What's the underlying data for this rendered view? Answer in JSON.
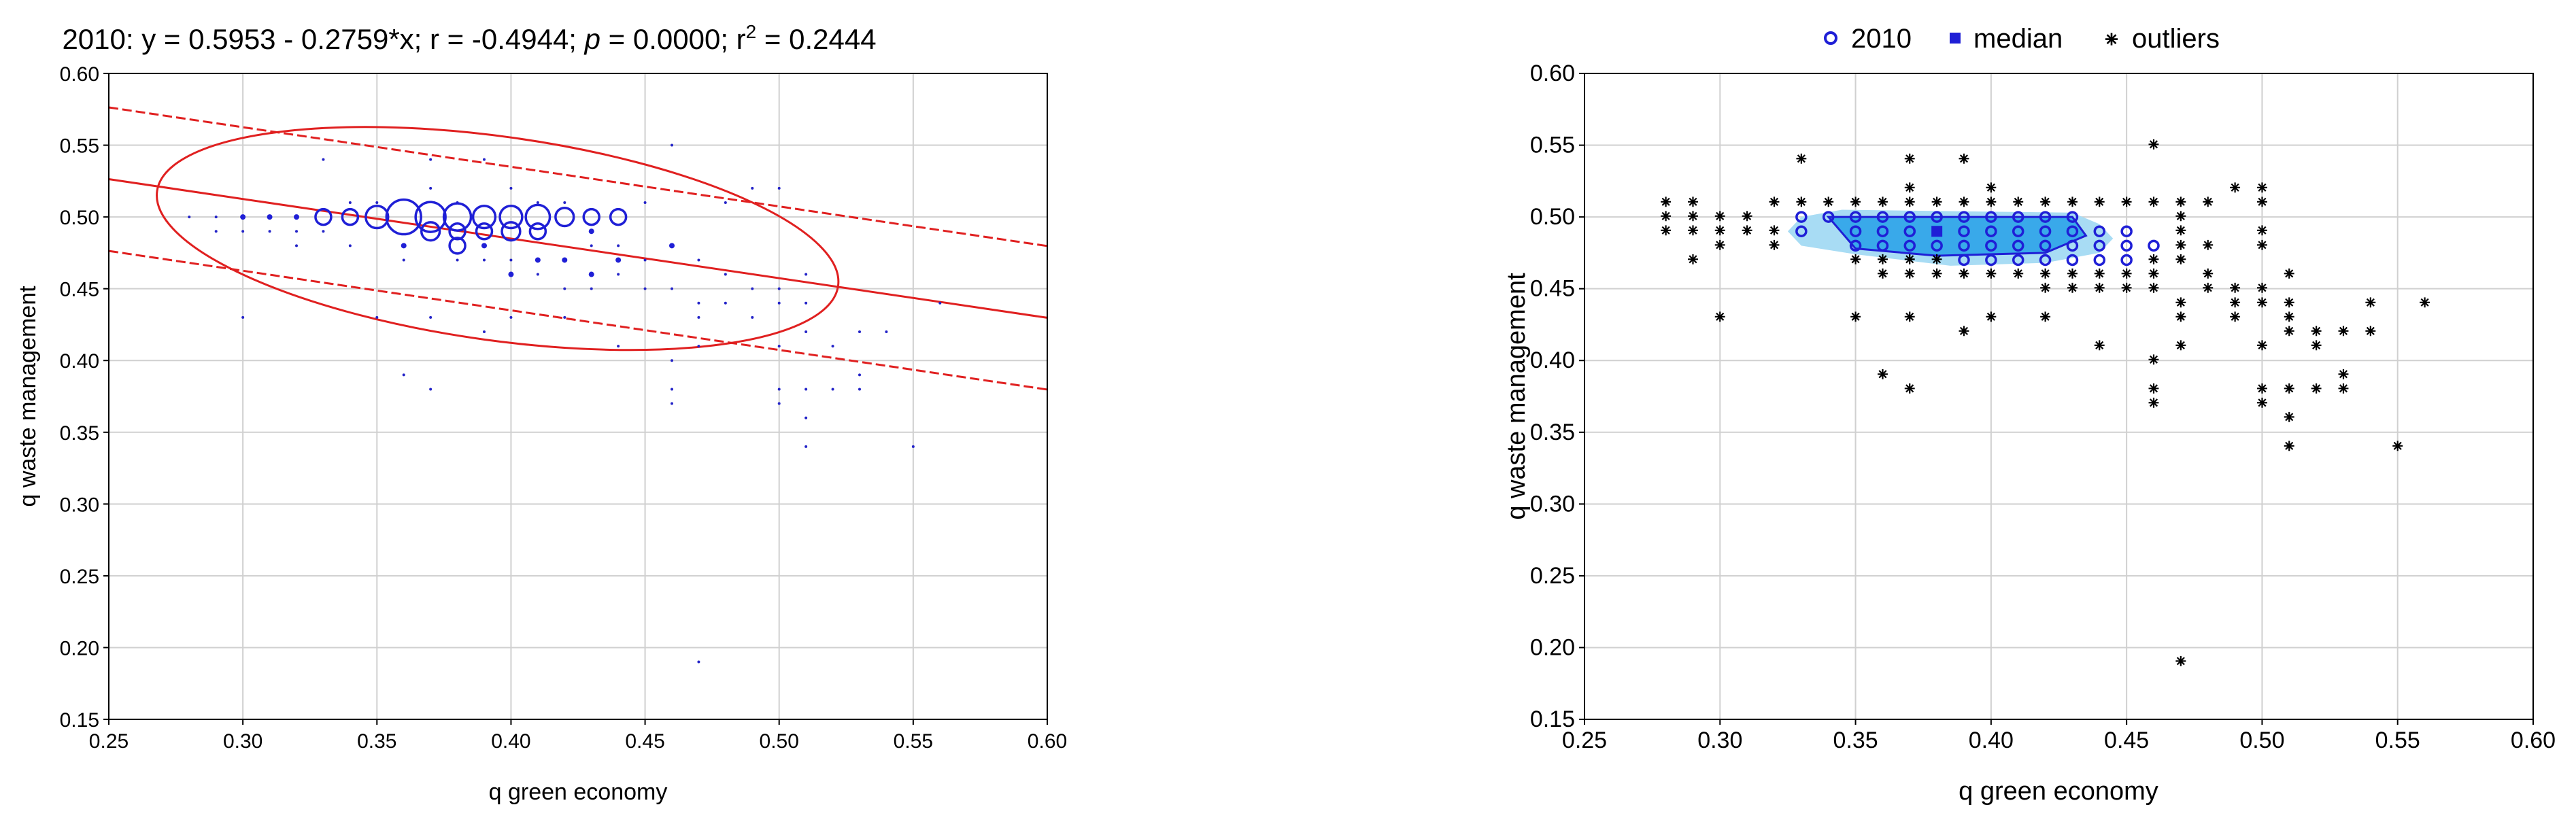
{
  "chart_data": [
    {
      "type": "scatter",
      "title": "2010: y = 0.5953 - 0.2759*x; r = -0.4944; p = 0.0000; r² = 0.2444",
      "title_parts": {
        "pre": "2010: y = 0.5953 - 0.2759*x; r = -0.4944; ",
        "p": "p",
        "mid": " = 0.0000; r",
        "sup": "2",
        "post": " = 0.2444"
      },
      "xlabel": "q green economy",
      "ylabel": "q waste management",
      "xlim": [
        0.25,
        0.6
      ],
      "ylim": [
        0.15,
        0.6
      ],
      "xticks": [
        0.25,
        0.3,
        0.35,
        0.4,
        0.45,
        0.5,
        0.55,
        0.6
      ],
      "yticks": [
        0.15,
        0.2,
        0.25,
        0.3,
        0.35,
        0.4,
        0.45,
        0.5,
        0.55,
        0.6
      ],
      "tick_labels_x": [
        "0.25",
        "0.30",
        "0.35",
        "0.40",
        "0.45",
        "0.50",
        "0.55",
        "0.60"
      ],
      "tick_labels_y": [
        "0.15",
        "0.20",
        "0.25",
        "0.30",
        "0.35",
        "0.40",
        "0.45",
        "0.50",
        "0.55",
        "0.60"
      ],
      "grid": true,
      "regression": {
        "intercept": 0.5953,
        "slope": -0.2759,
        "ci_upper_offset": 0.05,
        "ci_lower_offset": -0.05
      },
      "ellipse": {
        "center": [
          0.395,
          0.487
        ],
        "major_axis_endpoints": [
          [
            0.268,
            0.518
          ],
          [
            0.522,
            0.452
          ]
        ],
        "minor_half_length": 0.071
      },
      "bubbles": [
        {
          "x": 0.3,
          "y": 0.5,
          "w": 1
        },
        {
          "x": 0.31,
          "y": 0.5,
          "w": 1
        },
        {
          "x": 0.32,
          "y": 0.5,
          "w": 1
        },
        {
          "x": 0.33,
          "y": 0.5,
          "w": 2
        },
        {
          "x": 0.34,
          "y": 0.5,
          "w": 2
        },
        {
          "x": 0.35,
          "y": 0.5,
          "w": 5
        },
        {
          "x": 0.36,
          "y": 0.5,
          "w": 14
        },
        {
          "x": 0.37,
          "y": 0.5,
          "w": 10
        },
        {
          "x": 0.38,
          "y": 0.5,
          "w": 8
        },
        {
          "x": 0.39,
          "y": 0.5,
          "w": 5
        },
        {
          "x": 0.4,
          "y": 0.5,
          "w": 5
        },
        {
          "x": 0.41,
          "y": 0.5,
          "w": 6
        },
        {
          "x": 0.42,
          "y": 0.5,
          "w": 3
        },
        {
          "x": 0.43,
          "y": 0.5,
          "w": 2
        },
        {
          "x": 0.44,
          "y": 0.5,
          "w": 2
        },
        {
          "x": 0.37,
          "y": 0.49,
          "w": 3
        },
        {
          "x": 0.38,
          "y": 0.49,
          "w": 2
        },
        {
          "x": 0.39,
          "y": 0.49,
          "w": 2
        },
        {
          "x": 0.4,
          "y": 0.49,
          "w": 3
        },
        {
          "x": 0.41,
          "y": 0.49,
          "w": 2
        },
        {
          "x": 0.43,
          "y": 0.49,
          "w": 1
        },
        {
          "x": 0.36,
          "y": 0.48,
          "w": 1
        },
        {
          "x": 0.38,
          "y": 0.48,
          "w": 2
        },
        {
          "x": 0.39,
          "y": 0.48,
          "w": 1
        },
        {
          "x": 0.41,
          "y": 0.47,
          "w": 1
        },
        {
          "x": 0.42,
          "y": 0.47,
          "w": 1
        },
        {
          "x": 0.44,
          "y": 0.47,
          "w": 1
        },
        {
          "x": 0.4,
          "y": 0.46,
          "w": 1
        },
        {
          "x": 0.43,
          "y": 0.46,
          "w": 1
        },
        {
          "x": 0.46,
          "y": 0.48,
          "w": 1
        }
      ],
      "dots": [
        [
          0.28,
          0.5
        ],
        [
          0.29,
          0.5
        ],
        [
          0.29,
          0.49
        ],
        [
          0.3,
          0.49
        ],
        [
          0.3,
          0.43
        ],
        [
          0.31,
          0.49
        ],
        [
          0.32,
          0.48
        ],
        [
          0.32,
          0.49
        ],
        [
          0.33,
          0.54
        ],
        [
          0.33,
          0.49
        ],
        [
          0.34,
          0.48
        ],
        [
          0.34,
          0.51
        ],
        [
          0.35,
          0.43
        ],
        [
          0.35,
          0.51
        ],
        [
          0.36,
          0.39
        ],
        [
          0.36,
          0.47
        ],
        [
          0.37,
          0.54
        ],
        [
          0.37,
          0.38
        ],
        [
          0.37,
          0.43
        ],
        [
          0.37,
          0.52
        ],
        [
          0.38,
          0.51
        ],
        [
          0.38,
          0.47
        ],
        [
          0.39,
          0.54
        ],
        [
          0.39,
          0.42
        ],
        [
          0.39,
          0.47
        ],
        [
          0.4,
          0.43
        ],
        [
          0.4,
          0.52
        ],
        [
          0.4,
          0.47
        ],
        [
          0.41,
          0.51
        ],
        [
          0.41,
          0.46
        ],
        [
          0.42,
          0.45
        ],
        [
          0.42,
          0.43
        ],
        [
          0.42,
          0.51
        ],
        [
          0.43,
          0.48
        ],
        [
          0.43,
          0.45
        ],
        [
          0.44,
          0.41
        ],
        [
          0.44,
          0.48
        ],
        [
          0.44,
          0.46
        ],
        [
          0.45,
          0.51
        ],
        [
          0.45,
          0.45
        ],
        [
          0.45,
          0.47
        ],
        [
          0.46,
          0.55
        ],
        [
          0.46,
          0.38
        ],
        [
          0.46,
          0.37
        ],
        [
          0.46,
          0.4
        ],
        [
          0.46,
          0.45
        ],
        [
          0.47,
          0.19
        ],
        [
          0.47,
          0.43
        ],
        [
          0.47,
          0.44
        ],
        [
          0.47,
          0.41
        ],
        [
          0.47,
          0.47
        ],
        [
          0.48,
          0.44
        ],
        [
          0.48,
          0.46
        ],
        [
          0.48,
          0.51
        ],
        [
          0.49,
          0.52
        ],
        [
          0.49,
          0.45
        ],
        [
          0.49,
          0.43
        ],
        [
          0.5,
          0.52
        ],
        [
          0.5,
          0.37
        ],
        [
          0.5,
          0.38
        ],
        [
          0.5,
          0.41
        ],
        [
          0.5,
          0.44
        ],
        [
          0.5,
          0.45
        ],
        [
          0.51,
          0.34
        ],
        [
          0.51,
          0.36
        ],
        [
          0.51,
          0.38
        ],
        [
          0.51,
          0.42
        ],
        [
          0.51,
          0.44
        ],
        [
          0.51,
          0.46
        ],
        [
          0.52,
          0.38
        ],
        [
          0.52,
          0.41
        ],
        [
          0.53,
          0.38
        ],
        [
          0.53,
          0.39
        ],
        [
          0.53,
          0.42
        ],
        [
          0.54,
          0.42
        ],
        [
          0.55,
          0.34
        ],
        [
          0.56,
          0.44
        ]
      ]
    },
    {
      "type": "scatter",
      "xlabel": "q green economy",
      "ylabel": "q waste management",
      "xlim": [
        0.25,
        0.6
      ],
      "ylim": [
        0.15,
        0.6
      ],
      "xticks": [
        0.25,
        0.3,
        0.35,
        0.4,
        0.45,
        0.5,
        0.55,
        0.6
      ],
      "yticks": [
        0.15,
        0.2,
        0.25,
        0.3,
        0.35,
        0.4,
        0.45,
        0.5,
        0.55,
        0.6
      ],
      "tick_labels_x": [
        "0.25",
        "0.30",
        "0.35",
        "0.40",
        "0.45",
        "0.50",
        "0.55",
        "0.60"
      ],
      "tick_labels_y": [
        "0.15",
        "0.20",
        "0.25",
        "0.30",
        "0.35",
        "0.40",
        "0.45",
        "0.50",
        "0.55",
        "0.60"
      ],
      "grid": true,
      "legend": [
        "2010",
        "median",
        "outliers"
      ],
      "legend_position": "top",
      "colors": {
        "marker": "#1f1fd6",
        "bag_outer": "#a8dcf4",
        "bag_inner": "#39a9ea"
      },
      "bag_outer": [
        [
          0.325,
          0.49
        ],
        [
          0.33,
          0.5
        ],
        [
          0.345,
          0.505
        ],
        [
          0.43,
          0.503
        ],
        [
          0.44,
          0.495
        ],
        [
          0.445,
          0.485
        ],
        [
          0.44,
          0.475
        ],
        [
          0.42,
          0.468
        ],
        [
          0.385,
          0.466
        ],
        [
          0.35,
          0.474
        ],
        [
          0.33,
          0.48
        ]
      ],
      "bag_inner": [
        [
          0.34,
          0.5
        ],
        [
          0.43,
          0.5
        ],
        [
          0.435,
          0.487
        ],
        [
          0.42,
          0.475
        ],
        [
          0.38,
          0.473
        ],
        [
          0.35,
          0.478
        ]
      ],
      "median": [
        0.38,
        0.49
      ],
      "circles": [
        [
          0.33,
          0.5
        ],
        [
          0.33,
          0.49
        ],
        [
          0.34,
          0.5
        ],
        [
          0.35,
          0.5
        ],
        [
          0.35,
          0.49
        ],
        [
          0.35,
          0.48
        ],
        [
          0.36,
          0.5
        ],
        [
          0.36,
          0.49
        ],
        [
          0.36,
          0.48
        ],
        [
          0.37,
          0.5
        ],
        [
          0.37,
          0.49
        ],
        [
          0.37,
          0.48
        ],
        [
          0.38,
          0.5
        ],
        [
          0.38,
          0.48
        ],
        [
          0.39,
          0.5
        ],
        [
          0.39,
          0.49
        ],
        [
          0.39,
          0.48
        ],
        [
          0.39,
          0.47
        ],
        [
          0.4,
          0.5
        ],
        [
          0.4,
          0.49
        ],
        [
          0.4,
          0.48
        ],
        [
          0.4,
          0.47
        ],
        [
          0.41,
          0.5
        ],
        [
          0.41,
          0.49
        ],
        [
          0.41,
          0.48
        ],
        [
          0.41,
          0.47
        ],
        [
          0.42,
          0.5
        ],
        [
          0.42,
          0.49
        ],
        [
          0.42,
          0.48
        ],
        [
          0.42,
          0.47
        ],
        [
          0.43,
          0.5
        ],
        [
          0.43,
          0.49
        ],
        [
          0.43,
          0.48
        ],
        [
          0.43,
          0.47
        ],
        [
          0.44,
          0.49
        ],
        [
          0.44,
          0.48
        ],
        [
          0.44,
          0.47
        ],
        [
          0.45,
          0.49
        ],
        [
          0.45,
          0.48
        ],
        [
          0.45,
          0.47
        ],
        [
          0.46,
          0.48
        ]
      ],
      "outliers": [
        [
          0.28,
          0.51
        ],
        [
          0.28,
          0.5
        ],
        [
          0.28,
          0.49
        ],
        [
          0.29,
          0.51
        ],
        [
          0.29,
          0.5
        ],
        [
          0.29,
          0.49
        ],
        [
          0.29,
          0.47
        ],
        [
          0.3,
          0.5
        ],
        [
          0.3,
          0.49
        ],
        [
          0.3,
          0.48
        ],
        [
          0.3,
          0.43
        ],
        [
          0.31,
          0.5
        ],
        [
          0.31,
          0.49
        ],
        [
          0.32,
          0.51
        ],
        [
          0.32,
          0.49
        ],
        [
          0.32,
          0.48
        ],
        [
          0.33,
          0.54
        ],
        [
          0.33,
          0.51
        ],
        [
          0.34,
          0.51
        ],
        [
          0.35,
          0.51
        ],
        [
          0.35,
          0.47
        ],
        [
          0.35,
          0.43
        ],
        [
          0.36,
          0.51
        ],
        [
          0.36,
          0.47
        ],
        [
          0.36,
          0.46
        ],
        [
          0.36,
          0.39
        ],
        [
          0.37,
          0.54
        ],
        [
          0.37,
          0.52
        ],
        [
          0.37,
          0.51
        ],
        [
          0.37,
          0.47
        ],
        [
          0.37,
          0.46
        ],
        [
          0.37,
          0.43
        ],
        [
          0.37,
          0.38
        ],
        [
          0.38,
          0.51
        ],
        [
          0.38,
          0.47
        ],
        [
          0.38,
          0.46
        ],
        [
          0.39,
          0.54
        ],
        [
          0.39,
          0.51
        ],
        [
          0.39,
          0.46
        ],
        [
          0.39,
          0.42
        ],
        [
          0.4,
          0.52
        ],
        [
          0.4,
          0.51
        ],
        [
          0.4,
          0.46
        ],
        [
          0.4,
          0.43
        ],
        [
          0.41,
          0.51
        ],
        [
          0.41,
          0.46
        ],
        [
          0.42,
          0.51
        ],
        [
          0.42,
          0.46
        ],
        [
          0.42,
          0.45
        ],
        [
          0.42,
          0.43
        ],
        [
          0.43,
          0.51
        ],
        [
          0.43,
          0.46
        ],
        [
          0.43,
          0.45
        ],
        [
          0.44,
          0.51
        ],
        [
          0.44,
          0.46
        ],
        [
          0.44,
          0.45
        ],
        [
          0.44,
          0.41
        ],
        [
          0.45,
          0.51
        ],
        [
          0.45,
          0.46
        ],
        [
          0.45,
          0.45
        ],
        [
          0.46,
          0.55
        ],
        [
          0.46,
          0.51
        ],
        [
          0.46,
          0.47
        ],
        [
          0.46,
          0.46
        ],
        [
          0.46,
          0.45
        ],
        [
          0.46,
          0.4
        ],
        [
          0.46,
          0.38
        ],
        [
          0.46,
          0.37
        ],
        [
          0.47,
          0.51
        ],
        [
          0.47,
          0.5
        ],
        [
          0.47,
          0.49
        ],
        [
          0.47,
          0.48
        ],
        [
          0.47,
          0.47
        ],
        [
          0.47,
          0.44
        ],
        [
          0.47,
          0.43
        ],
        [
          0.47,
          0.41
        ],
        [
          0.47,
          0.19
        ],
        [
          0.48,
          0.51
        ],
        [
          0.48,
          0.48
        ],
        [
          0.48,
          0.46
        ],
        [
          0.48,
          0.45
        ],
        [
          0.49,
          0.52
        ],
        [
          0.49,
          0.45
        ],
        [
          0.49,
          0.44
        ],
        [
          0.49,
          0.43
        ],
        [
          0.5,
          0.52
        ],
        [
          0.5,
          0.51
        ],
        [
          0.5,
          0.49
        ],
        [
          0.5,
          0.48
        ],
        [
          0.5,
          0.45
        ],
        [
          0.5,
          0.44
        ],
        [
          0.5,
          0.41
        ],
        [
          0.5,
          0.38
        ],
        [
          0.5,
          0.37
        ],
        [
          0.51,
          0.46
        ],
        [
          0.51,
          0.44
        ],
        [
          0.51,
          0.43
        ],
        [
          0.51,
          0.42
        ],
        [
          0.51,
          0.38
        ],
        [
          0.51,
          0.36
        ],
        [
          0.51,
          0.34
        ],
        [
          0.52,
          0.42
        ],
        [
          0.52,
          0.41
        ],
        [
          0.52,
          0.38
        ],
        [
          0.53,
          0.42
        ],
        [
          0.53,
          0.39
        ],
        [
          0.53,
          0.38
        ],
        [
          0.54,
          0.44
        ],
        [
          0.54,
          0.42
        ],
        [
          0.55,
          0.34
        ],
        [
          0.56,
          0.44
        ]
      ]
    }
  ]
}
